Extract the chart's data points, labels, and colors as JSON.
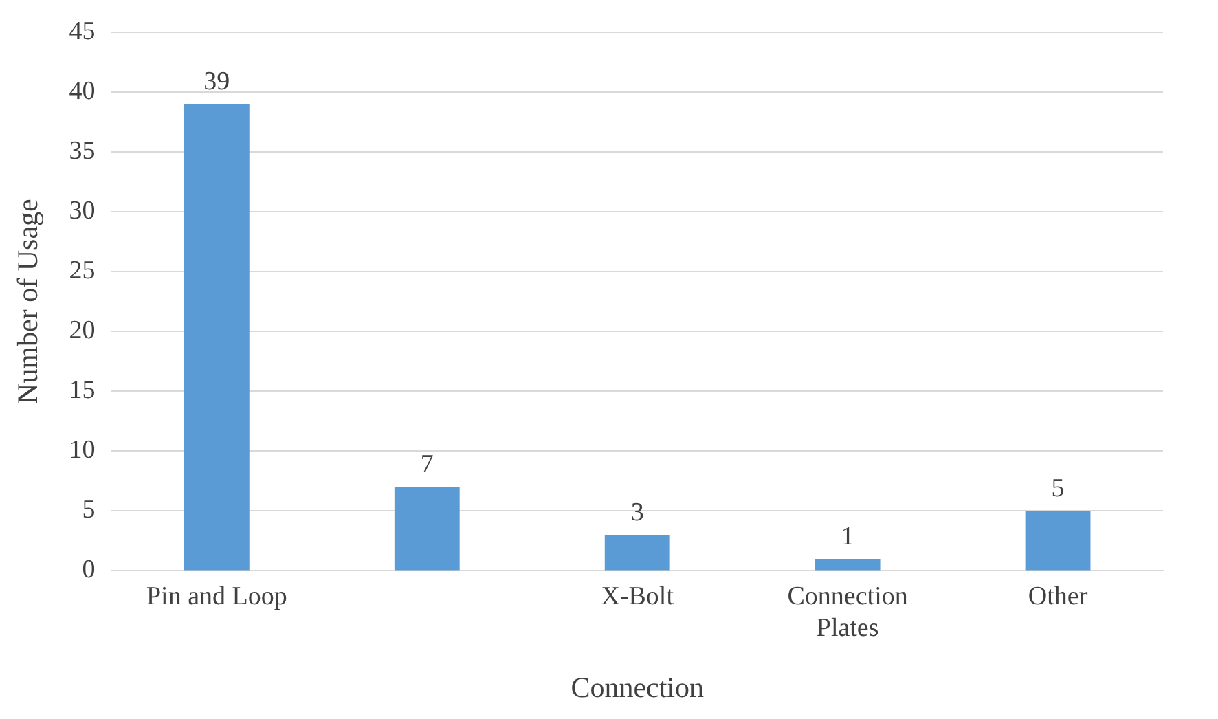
{
  "chart_data": {
    "type": "bar",
    "xlabel": "Connection",
    "ylabel": "Number of Usage",
    "categories": [
      "Pin and Loop",
      null,
      "X-Bolt",
      "Connection Plates",
      "Other"
    ],
    "values": [
      39,
      7,
      3,
      1,
      5
    ],
    "color": "#5b9bd5",
    "ylim": [
      0,
      45
    ],
    "yticks": [
      0,
      5,
      10,
      15,
      20,
      25,
      30,
      35,
      40,
      45
    ],
    "grid": "y",
    "data_labels": true
  }
}
